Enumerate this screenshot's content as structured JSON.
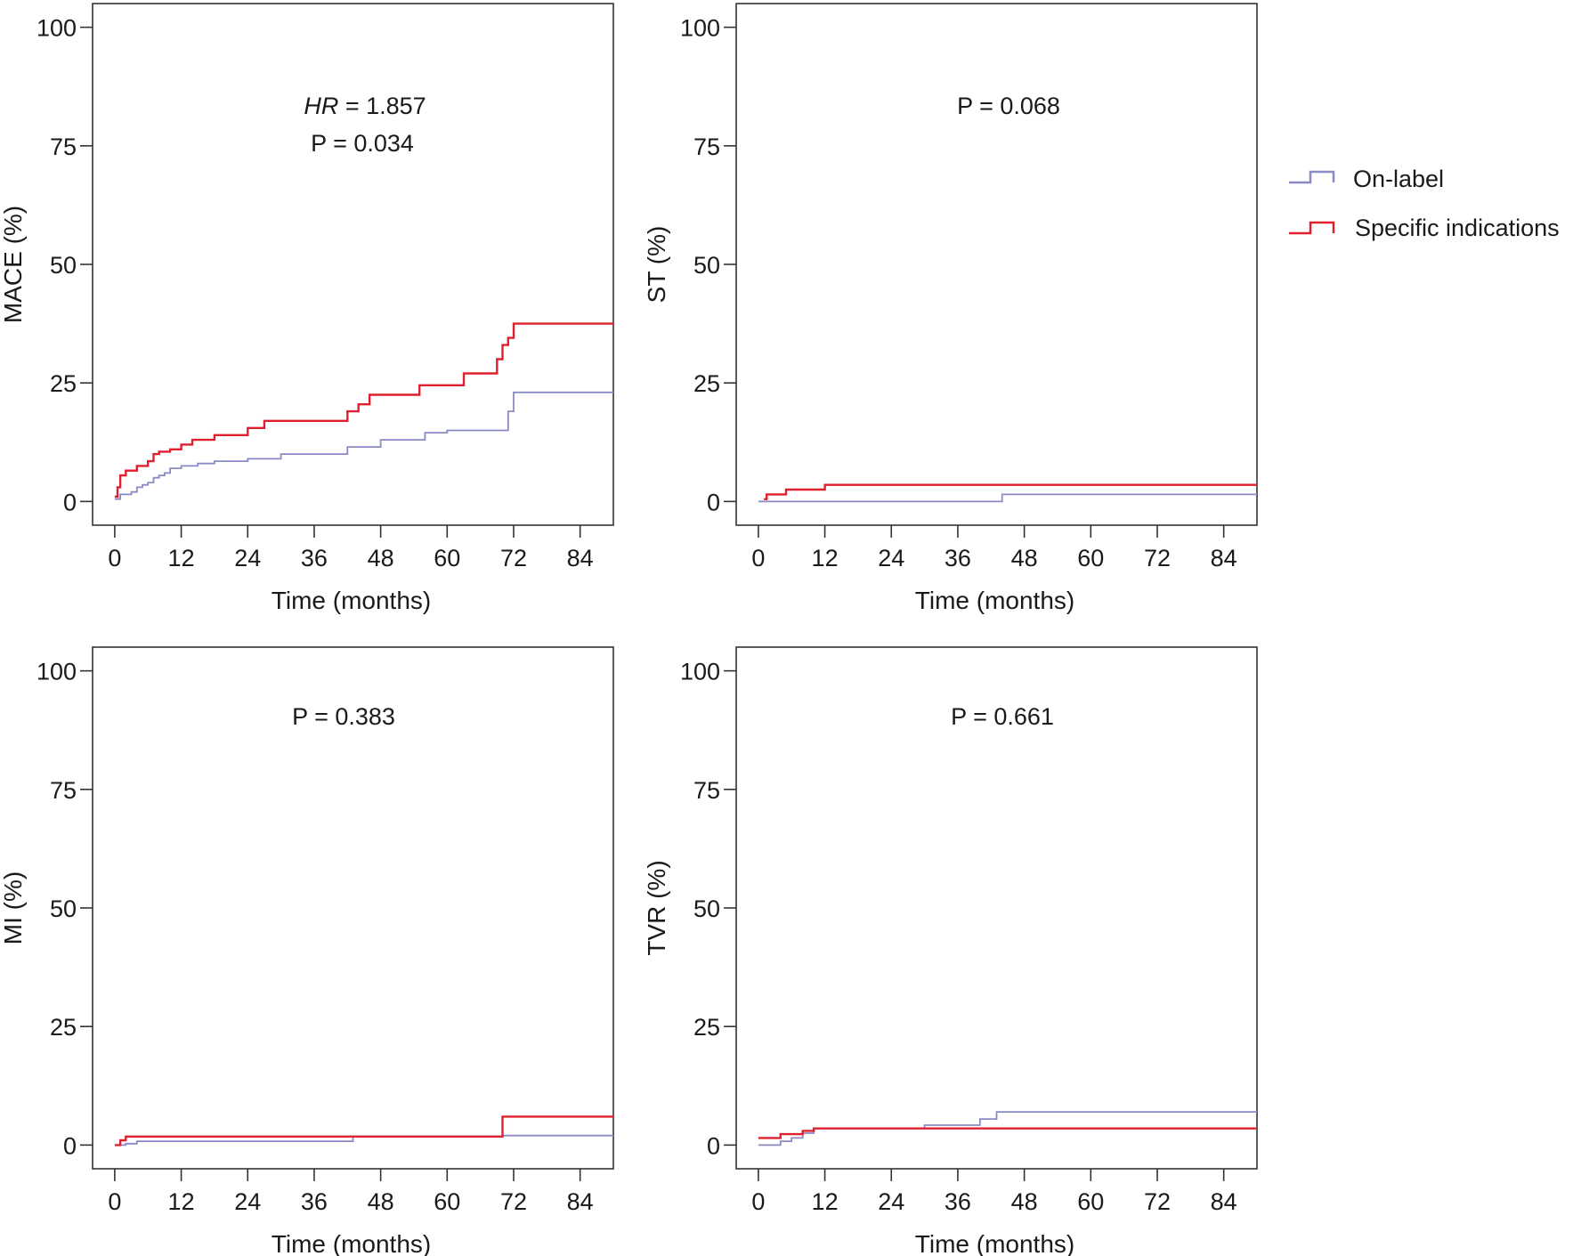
{
  "legend": {
    "items": [
      {
        "label": "On-label",
        "color": "#8a8ac4"
      },
      {
        "label": "Specific indications",
        "color": "#e0202e"
      }
    ]
  },
  "chart_data": [
    {
      "type": "line",
      "step": true,
      "ylabel": "MACE (%)",
      "xlabel": "Time (months)",
      "xlim": [
        -4,
        90
      ],
      "ylim": [
        -5,
        105
      ],
      "xticks": [
        0,
        12,
        24,
        36,
        48,
        60,
        72,
        84
      ],
      "yticks": [
        0,
        25,
        50,
        75,
        100
      ],
      "annotations": [
        {
          "italic": "HR",
          "text": " = 1.857"
        },
        {
          "text": "P = 0.034"
        }
      ],
      "series": [
        {
          "name": "On-label",
          "color": "#8a8ac4",
          "x": [
            0,
            1,
            3,
            4,
            5,
            6,
            7,
            8,
            9,
            10,
            12,
            15,
            18,
            24,
            30,
            42,
            48,
            56,
            60,
            68,
            71,
            72,
            90
          ],
          "y": [
            0.5,
            1.5,
            2,
            3,
            3.5,
            4,
            5,
            5.5,
            6,
            7,
            7.5,
            8,
            8.5,
            9,
            10,
            11.5,
            13,
            14.5,
            15,
            15,
            19,
            23,
            23
          ]
        },
        {
          "name": "Specific indications",
          "color": "#e0202e",
          "x": [
            0,
            0.5,
            1,
            2,
            4,
            6,
            7,
            8,
            10,
            12,
            14,
            18,
            24,
            27,
            42,
            44,
            46,
            48,
            55,
            63,
            69,
            70,
            71,
            72,
            90
          ],
          "y": [
            1,
            3,
            5.5,
            6.5,
            7.5,
            8.5,
            10,
            10.5,
            11,
            12,
            13,
            14,
            15.5,
            17,
            19,
            20.5,
            22.5,
            22.5,
            24.5,
            27,
            30,
            33,
            34.5,
            37.5,
            37.5
          ]
        }
      ]
    },
    {
      "type": "line",
      "step": true,
      "ylabel": "ST (%)",
      "xlabel": "Time (months)",
      "xlim": [
        -4,
        90
      ],
      "ylim": [
        -5,
        105
      ],
      "xticks": [
        0,
        12,
        24,
        36,
        48,
        60,
        72,
        84
      ],
      "yticks": [
        0,
        25,
        50,
        75,
        100
      ],
      "annotations": [
        {
          "text": "P = 0.068"
        }
      ],
      "series": [
        {
          "name": "On-label",
          "color": "#8a8ac4",
          "x": [
            0,
            44,
            90
          ],
          "y": [
            0,
            1.5,
            1.5
          ]
        },
        {
          "name": "Specific indications",
          "color": "#e0202e",
          "x": [
            1,
            1.5,
            5,
            12,
            90
          ],
          "y": [
            0.5,
            1.5,
            2.5,
            3.5,
            3.5
          ]
        }
      ]
    },
    {
      "type": "line",
      "step": true,
      "ylabel": "MI (%)",
      "xlabel": "Time (months)",
      "xlim": [
        -4,
        90
      ],
      "ylim": [
        -5,
        105
      ],
      "xticks": [
        0,
        12,
        24,
        36,
        48,
        60,
        72,
        84
      ],
      "yticks": [
        0,
        25,
        50,
        75,
        100
      ],
      "annotations": [
        {
          "text": "P = 0.383"
        }
      ],
      "series": [
        {
          "name": "On-label",
          "color": "#8a8ac4",
          "x": [
            1,
            2,
            4,
            43,
            70,
            90
          ],
          "y": [
            0,
            0.3,
            0.8,
            1.8,
            2,
            2
          ]
        },
        {
          "name": "Specific indications",
          "color": "#e0202e",
          "x": [
            0,
            1,
            2,
            43,
            70,
            90
          ],
          "y": [
            0,
            1,
            1.8,
            1.8,
            6,
            6
          ]
        }
      ]
    },
    {
      "type": "line",
      "step": true,
      "ylabel": "TVR (%)",
      "xlabel": "Time (months)",
      "xlim": [
        -4,
        90
      ],
      "ylim": [
        -5,
        105
      ],
      "xticks": [
        0,
        12,
        24,
        36,
        48,
        60,
        72,
        84
      ],
      "yticks": [
        0,
        25,
        50,
        75,
        100
      ],
      "annotations": [
        {
          "text": "P = 0.661"
        }
      ],
      "series": [
        {
          "name": "On-label",
          "color": "#8a8ac4",
          "x": [
            0,
            4,
            6,
            8,
            10,
            30,
            40,
            43,
            90
          ],
          "y": [
            0,
            0.8,
            1.5,
            2.5,
            3.5,
            4.2,
            5.5,
            7,
            7
          ]
        },
        {
          "name": "Specific indications",
          "color": "#e0202e",
          "x": [
            0,
            4,
            8,
            10,
            90
          ],
          "y": [
            1.5,
            2.3,
            3,
            3.5,
            3.5
          ]
        }
      ]
    }
  ]
}
